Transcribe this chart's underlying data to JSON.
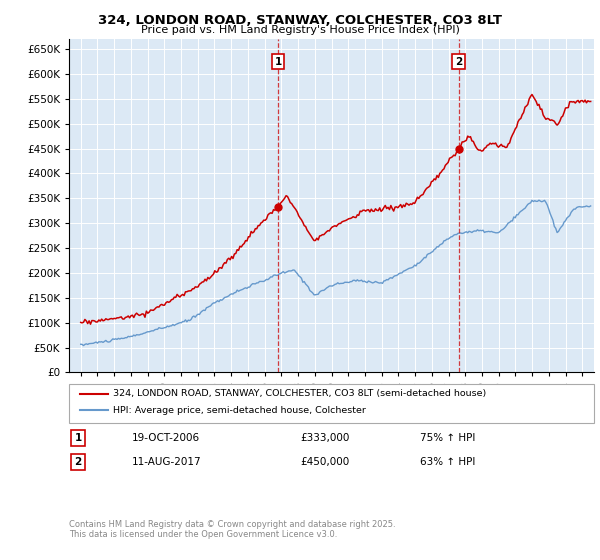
{
  "title": "324, LONDON ROAD, STANWAY, COLCHESTER, CO3 8LT",
  "subtitle": "Price paid vs. HM Land Registry's House Price Index (HPI)",
  "bg_color": "#dce9f5",
  "red_color": "#cc0000",
  "blue_color": "#6699cc",
  "ylim": [
    0,
    670000
  ],
  "yticks": [
    0,
    50000,
    100000,
    150000,
    200000,
    250000,
    300000,
    350000,
    400000,
    450000,
    500000,
    550000,
    600000,
    650000
  ],
  "sale1_date": "19-OCT-2006",
  "sale1_price": 333000,
  "sale1_pct": "75% ↑ HPI",
  "sale2_date": "11-AUG-2017",
  "sale2_price": 450000,
  "sale2_pct": "63% ↑ HPI",
  "legend_line1": "324, LONDON ROAD, STANWAY, COLCHESTER, CO3 8LT (semi-detached house)",
  "legend_line2": "HPI: Average price, semi-detached house, Colchester",
  "footer": "Contains HM Land Registry data © Crown copyright and database right 2025.\nThis data is licensed under the Open Government Licence v3.0.",
  "sale1_x": 2006.8,
  "sale2_x": 2017.6,
  "xlim_left": 1994.3,
  "xlim_right": 2025.7
}
